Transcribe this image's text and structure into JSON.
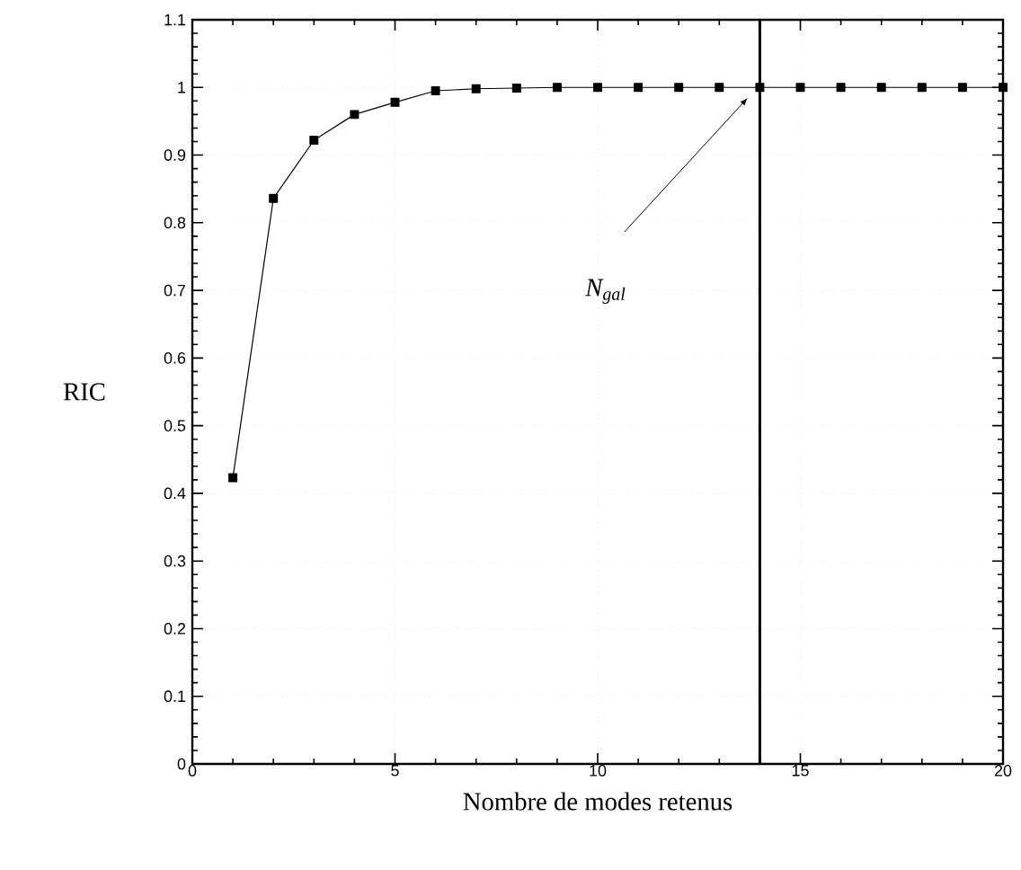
{
  "chart_data": {
    "type": "line",
    "xlabel": "Nombre de modes retenus",
    "ylabel": "RIC",
    "x": [
      1,
      2,
      3,
      4,
      5,
      6,
      7,
      8,
      9,
      10,
      11,
      12,
      13,
      14,
      15,
      16,
      17,
      18,
      19,
      20
    ],
    "series": [
      {
        "color": "#000000",
        "values": [
          0.423,
          0.836,
          0.922,
          0.96,
          0.978,
          0.995,
          0.998,
          0.999,
          1,
          1,
          1,
          1,
          1,
          1,
          1,
          1,
          1,
          1,
          1,
          1
        ]
      }
    ],
    "xlim": [
      0,
      20
    ],
    "xticks": [
      0,
      5,
      10,
      15,
      20
    ],
    "ylim": [
      0,
      1.1
    ],
    "yticks": [
      0,
      0.1,
      0.2,
      0.3,
      0.4,
      0.5,
      0.6,
      0.7,
      0.8,
      0.9,
      1,
      1.1
    ],
    "marker": "square",
    "line_style": "solid",
    "grid": true,
    "ref_lines": [
      {
        "axis": "x",
        "value": 14,
        "color": "#000000"
      }
    ],
    "annotations": [
      "N$_{gal}$"
    ]
  }
}
